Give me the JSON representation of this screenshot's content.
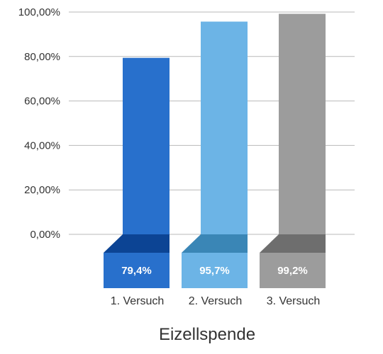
{
  "chart_data": {
    "type": "bar",
    "categories": [
      "1. Versuch",
      "2. Versuch",
      "3. Versuch"
    ],
    "values": [
      79.4,
      95.7,
      99.2
    ],
    "value_labels": [
      "79,4%",
      "95,7%",
      "99,2%"
    ],
    "title": "Eizellspende",
    "xlabel": "",
    "ylabel": "",
    "ylim": [
      0,
      100
    ],
    "yticks": [
      0,
      20,
      40,
      60,
      80,
      100
    ],
    "ytick_labels": [
      "0,00%",
      "20,00%",
      "40,00%",
      "60,00%",
      "80,00%",
      "100,00%"
    ],
    "grid": true,
    "legend": "none",
    "colors": {
      "bars": [
        "#2870cc",
        "#6cb4e6",
        "#9c9c9c"
      ],
      "label_boxes": [
        "#2870cc",
        "#6cb4e6",
        "#9c9c9c"
      ],
      "connectors": [
        "#0c4494",
        "#3a86b6",
        "#6e6e6e"
      ]
    }
  }
}
